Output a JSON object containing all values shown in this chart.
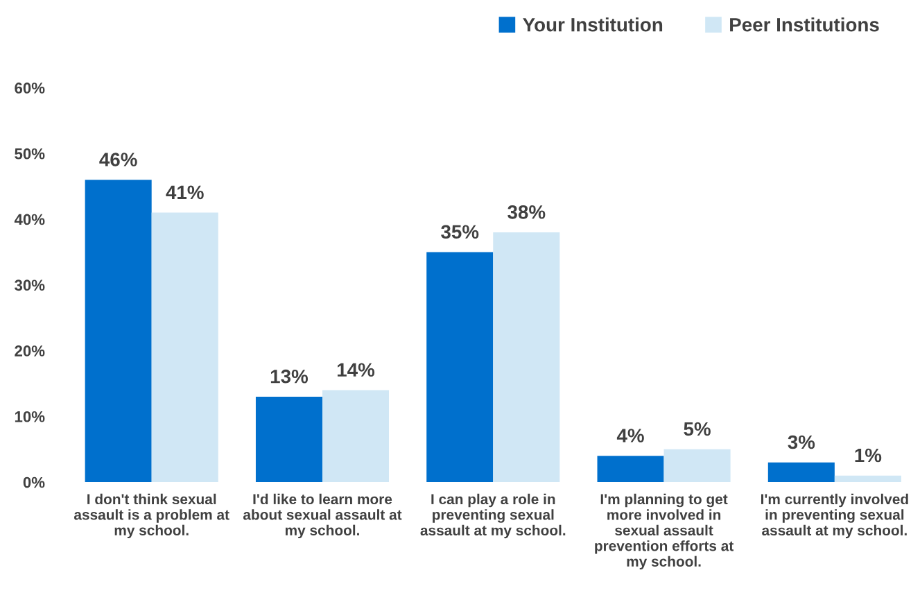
{
  "chart_data": {
    "type": "bar",
    "categories": [
      "I don't think sexual\nassault is a problem at\nmy school.",
      "I'd like to learn more\nabout sexual assault at\nmy school.",
      "I can play a role in\npreventing sexual\nassault at my school.",
      "I'm planning to get\nmore involved in\nsexual assault\nprevention efforts at\nmy school.",
      "I'm currently involved\nin preventing sexual\nassault at my school."
    ],
    "series": [
      {
        "name": "Your Institution",
        "color": "#0070cd",
        "values": [
          46,
          13,
          35,
          4,
          3
        ],
        "value_labels": [
          "46%",
          "13%",
          "35%",
          "4%",
          "3%"
        ]
      },
      {
        "name": "Peer Institutions",
        "color": "#d0e7f5",
        "values": [
          41,
          14,
          38,
          5,
          1
        ],
        "value_labels": [
          "41%",
          "14%",
          "38%",
          "5%",
          "1%"
        ]
      }
    ],
    "ylim": [
      0,
      60
    ],
    "yticks": [
      {
        "value": 0,
        "label": "0%"
      },
      {
        "value": 10,
        "label": "10%"
      },
      {
        "value": 20,
        "label": "20%"
      },
      {
        "value": 30,
        "label": "30%"
      },
      {
        "value": 40,
        "label": "40%"
      },
      {
        "value": 50,
        "label": "50%"
      },
      {
        "value": 60,
        "label": "60%"
      }
    ],
    "grid": false,
    "legend": "top right"
  }
}
